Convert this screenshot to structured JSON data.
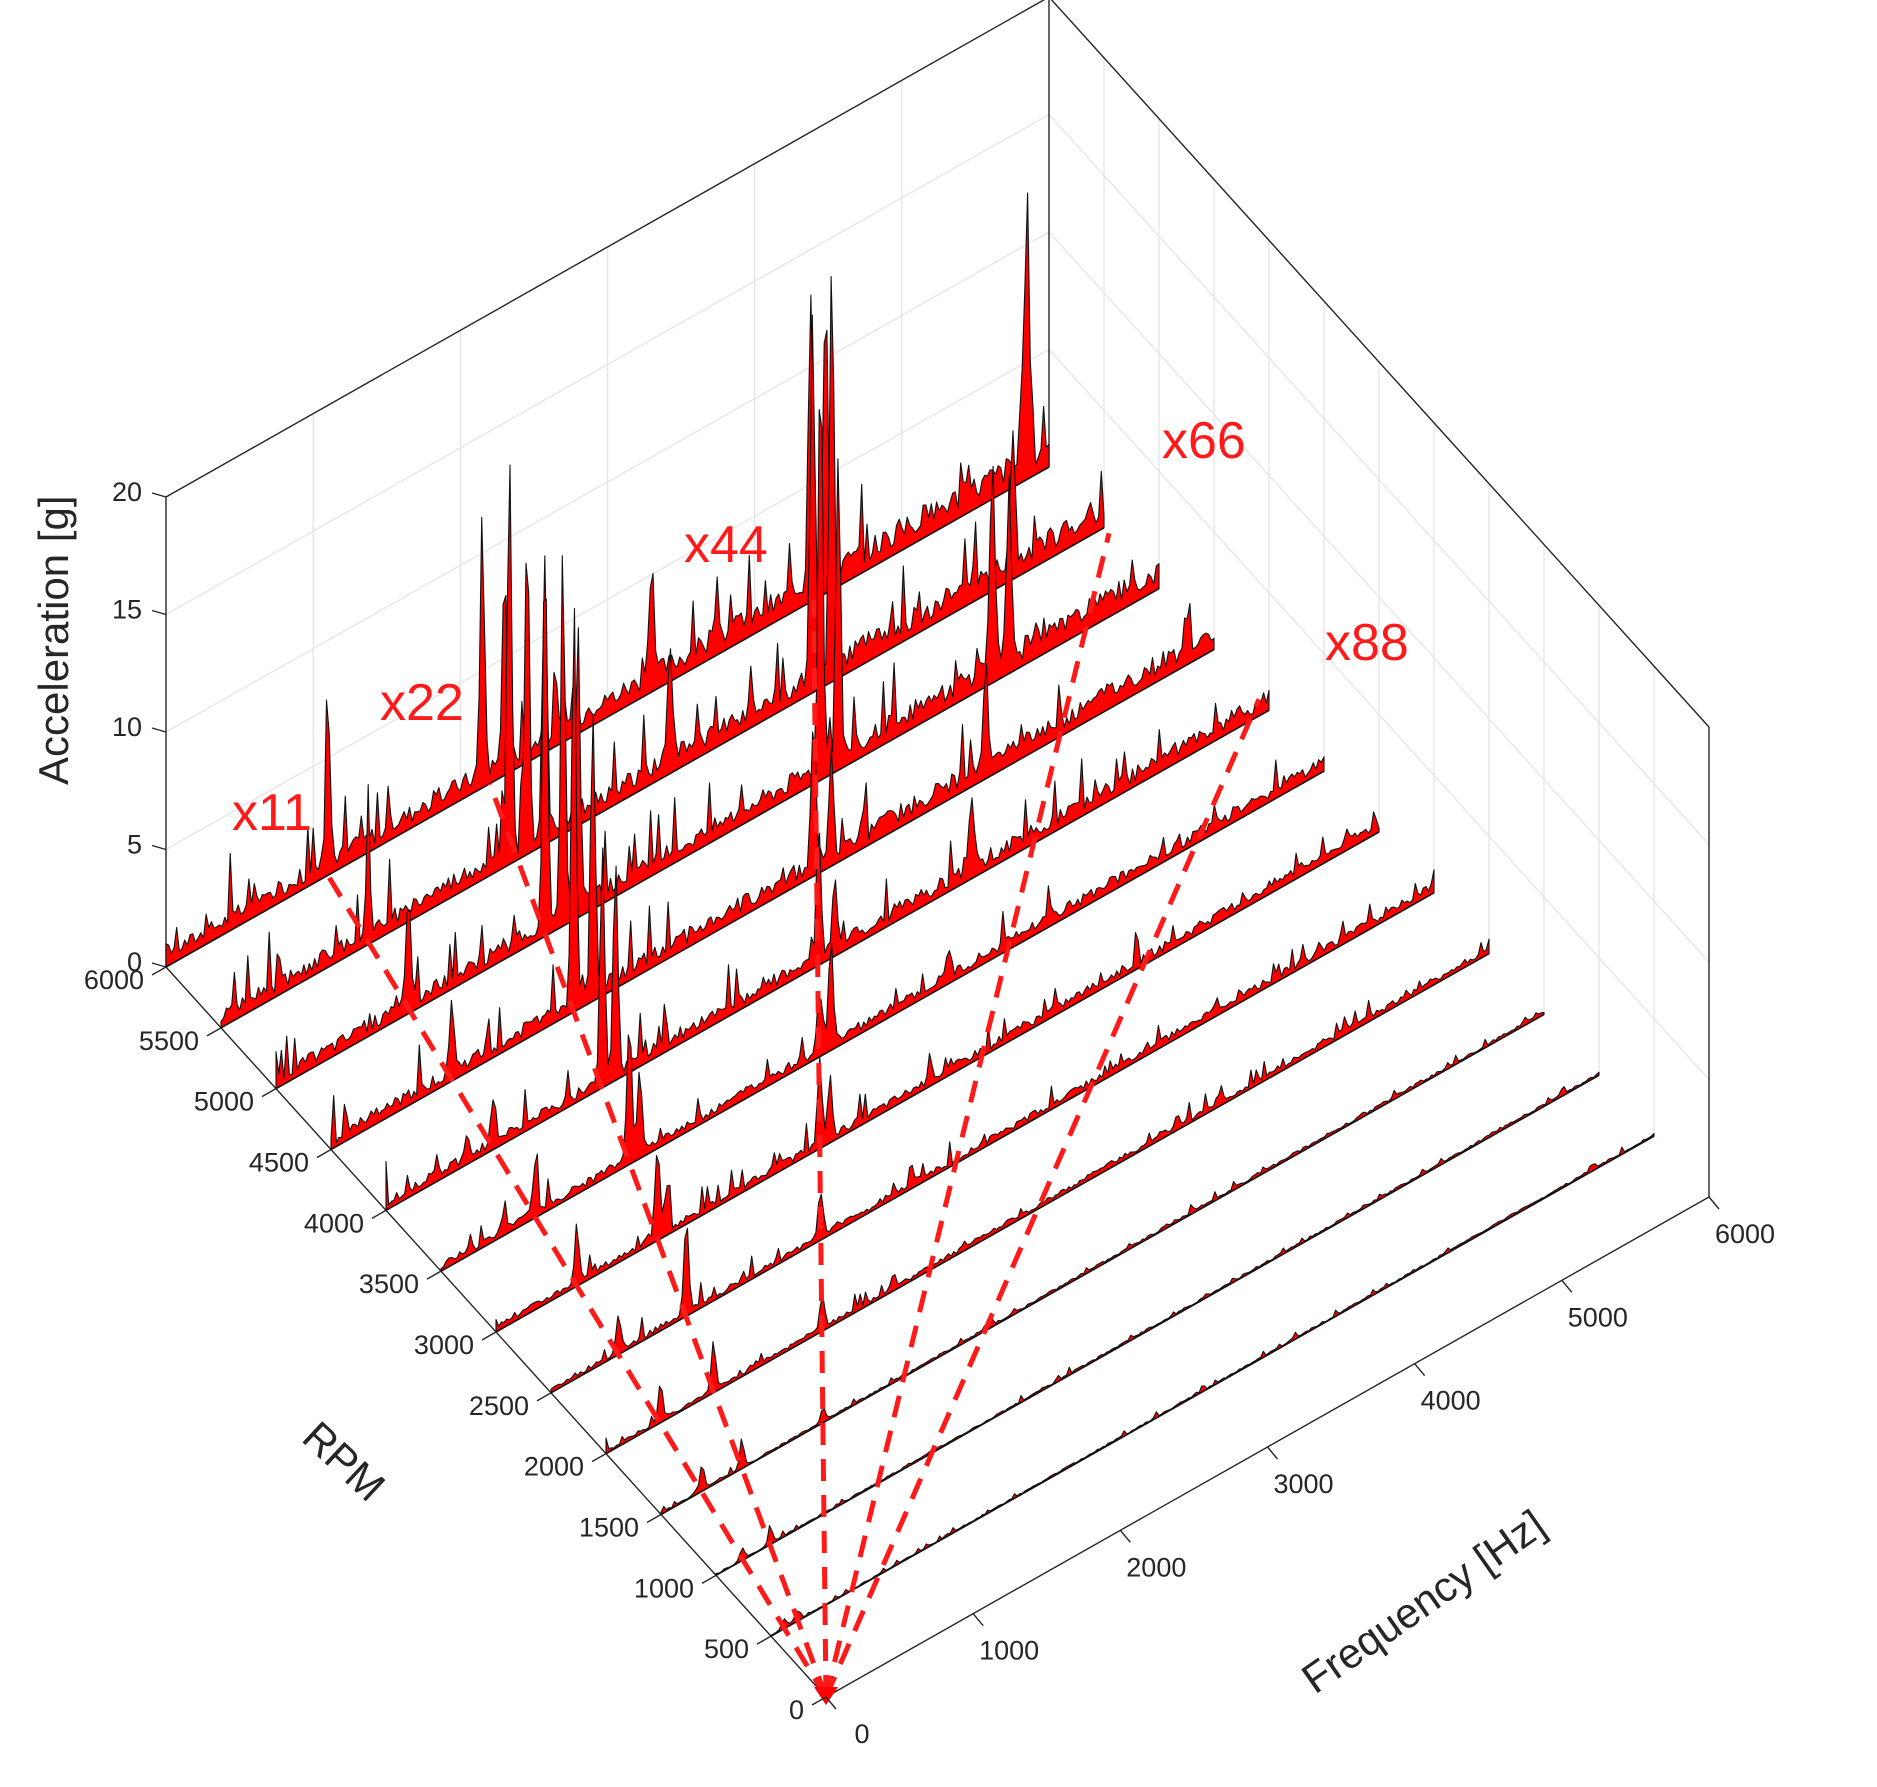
{
  "chart_data": {
    "type": "waterfall",
    "xlabel": "Frequency [Hz]",
    "ylabel": "RPM",
    "zlabel": "Acceleration [g]",
    "xlim": [
      0,
      6000
    ],
    "ylim": [
      0,
      6000
    ],
    "zlim": [
      0,
      20
    ],
    "x_ticks": [
      0,
      1000,
      2000,
      3000,
      4000,
      5000,
      6000
    ],
    "y_ticks": [
      0,
      500,
      1000,
      1500,
      2000,
      2500,
      3000,
      3500,
      4000,
      4500,
      5000,
      5500,
      6000
    ],
    "z_ticks": [
      0,
      5,
      10,
      15,
      20
    ],
    "grid": true,
    "fill_color": "#ff0000",
    "order_line_color": "#ff1a1a",
    "order_lines": [
      {
        "label": "x11",
        "order": 11
      },
      {
        "label": "x22",
        "order": 22
      },
      {
        "label": "x44",
        "order": 44
      },
      {
        "label": "x66",
        "order": 66
      },
      {
        "label": "x88",
        "order": 88
      }
    ],
    "spectra": [
      {
        "rpm": 6000,
        "noise": 1.3,
        "peaks": [
          [
            1100,
            6.5
          ],
          [
            2150,
            9.5
          ],
          [
            2300,
            8.0
          ],
          [
            3300,
            4.5
          ],
          [
            4380,
            12.5
          ],
          [
            4480,
            11.5
          ],
          [
            5850,
            10.0
          ]
        ]
      },
      {
        "rpm": 5500,
        "noise": 1.2,
        "peaks": [
          [
            1000,
            3.5
          ],
          [
            1960,
            16.5
          ],
          [
            2080,
            13.5
          ],
          [
            2200,
            12.0
          ],
          [
            3050,
            5.0
          ],
          [
            4020,
            15.0
          ],
          [
            4150,
            17.0
          ],
          [
            5380,
            6.0
          ]
        ]
      },
      {
        "rpm": 5000,
        "noise": 1.1,
        "peaks": [
          [
            900,
            4.5
          ],
          [
            1830,
            15.0
          ],
          [
            1950,
            13.5
          ],
          [
            2050,
            12.0
          ],
          [
            3700,
            16.5
          ],
          [
            3820,
            13.0
          ],
          [
            4870,
            8.5
          ],
          [
            4980,
            7.5
          ]
        ]
      },
      {
        "rpm": 4500,
        "noise": 1.0,
        "peaks": [
          [
            820,
            3.0
          ],
          [
            1650,
            15.5
          ],
          [
            1780,
            12.0
          ],
          [
            3280,
            6.0
          ],
          [
            3400,
            3.5
          ],
          [
            4450,
            4.0
          ]
        ]
      },
      {
        "rpm": 4000,
        "noise": 0.8,
        "peaks": [
          [
            730,
            2.0
          ],
          [
            1470,
            10.0
          ],
          [
            1560,
            9.0
          ],
          [
            2940,
            5.5
          ],
          [
            3050,
            3.0
          ],
          [
            3980,
            3.0
          ]
        ]
      },
      {
        "rpm": 3500,
        "noise": 0.6,
        "peaks": [
          [
            640,
            2.0
          ],
          [
            1280,
            6.0
          ],
          [
            1350,
            3.5
          ],
          [
            2570,
            2.5
          ],
          [
            2650,
            4.5
          ],
          [
            3450,
            1.2
          ]
        ]
      },
      {
        "rpm": 3000,
        "noise": 0.5,
        "peaks": [
          [
            550,
            2.0
          ],
          [
            1100,
            3.5
          ],
          [
            1160,
            2.0
          ],
          [
            2200,
            3.5
          ],
          [
            2270,
            2.5
          ],
          [
            2950,
            1.0
          ]
        ]
      },
      {
        "rpm": 2500,
        "noise": 0.4,
        "peaks": [
          [
            460,
            1.5
          ],
          [
            920,
            4.0
          ],
          [
            1830,
            2.0
          ],
          [
            2450,
            0.8
          ]
        ]
      },
      {
        "rpm": 2000,
        "noise": 0.3,
        "peaks": [
          [
            370,
            1.5
          ],
          [
            730,
            2.0
          ],
          [
            1470,
            1.5
          ],
          [
            1950,
            0.6
          ]
        ]
      },
      {
        "rpm": 1500,
        "noise": 0.15,
        "peaks": [
          [
            280,
            1.0
          ],
          [
            550,
            1.0
          ],
          [
            1100,
            0.6
          ]
        ]
      },
      {
        "rpm": 1000,
        "noise": 0.12,
        "peaks": [
          [
            180,
            0.5
          ],
          [
            370,
            0.6
          ]
        ]
      },
      {
        "rpm": 500,
        "noise": 0.1,
        "peaks": [
          [
            90,
            0.4
          ],
          [
            180,
            0.4
          ]
        ]
      }
    ]
  }
}
